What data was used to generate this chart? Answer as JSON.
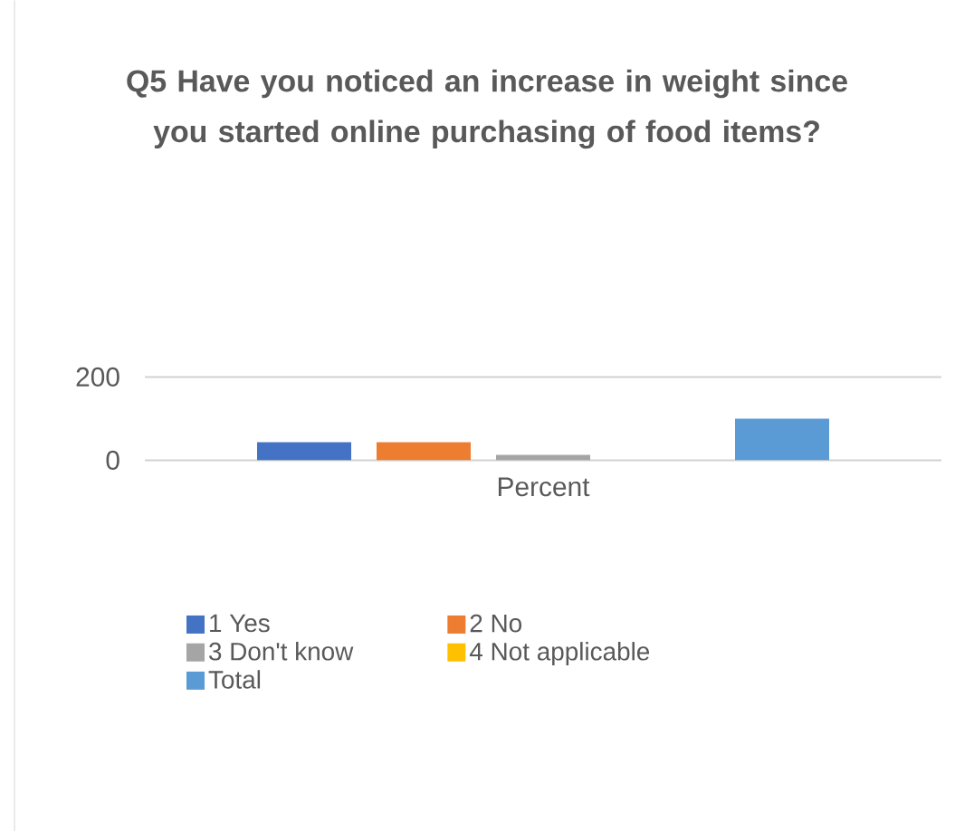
{
  "chart_data": {
    "type": "bar",
    "title": "Q5 Have you noticed an increase in weight since you started online purchasing of food items?",
    "categories": [
      "Percent"
    ],
    "series": [
      {
        "name": "1 Yes",
        "color": "#4472c4",
        "values": [
          43
        ]
      },
      {
        "name": "2 No",
        "color": "#ed7d31",
        "values": [
          43
        ]
      },
      {
        "name": "3 Don't know",
        "color": "#a5a5a5",
        "values": [
          13
        ]
      },
      {
        "name": "4 Not applicable",
        "color": "#ffc000",
        "values": [
          0
        ]
      },
      {
        "name": "Total",
        "color": "#5b9bd5",
        "values": [
          100
        ]
      }
    ],
    "ylim": [
      0,
      200
    ],
    "yticks": [
      0,
      200
    ],
    "grid": "y",
    "legend": "bottom"
  }
}
